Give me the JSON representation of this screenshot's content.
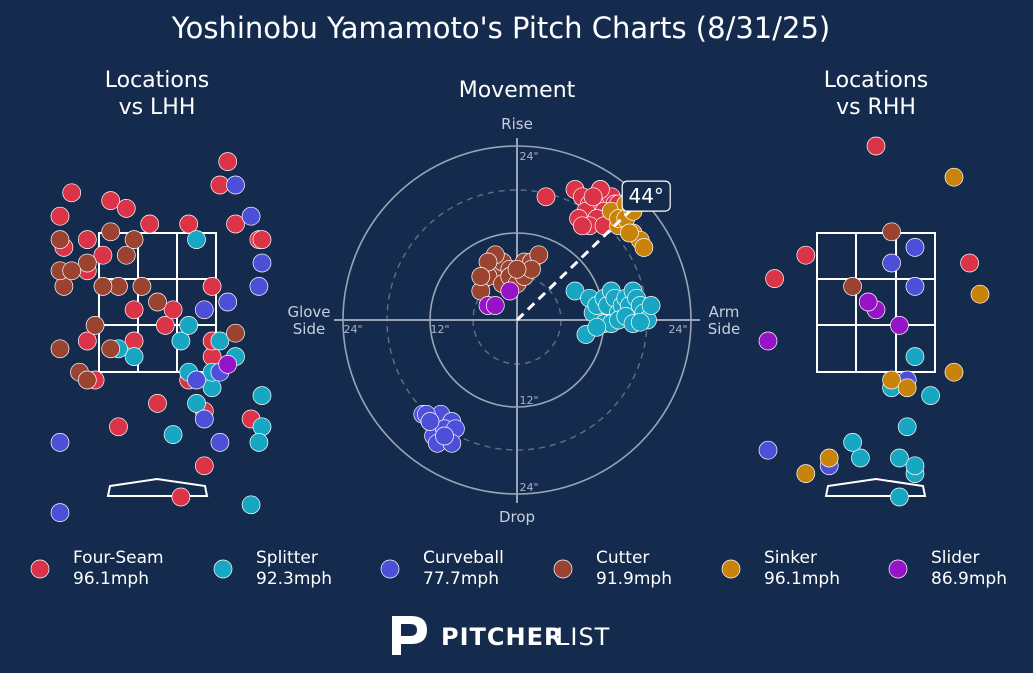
{
  "title": "Yoshinobu Yamamoto's Pitch Charts (8/31/25)",
  "panels": {
    "lhh": {
      "title_line1": "Locations",
      "title_line2": "vs LHH"
    },
    "movement": {
      "title": "Movement",
      "rise": "Rise",
      "drop": "Drop",
      "glove_line1": "Glove",
      "glove_line2": "Side",
      "arm_line1": "Arm",
      "arm_line2": "Side",
      "angle_label": "44°"
    },
    "rhh": {
      "title_line1": "Locations",
      "title_line2": "vs RHH"
    }
  },
  "ring_labels": {
    "top24": "24\"",
    "top12": "12\"",
    "bottom24": "24\"",
    "left24": "24\"",
    "left12": "12\"",
    "right24": "24\""
  },
  "brand": {
    "bold": "PITCHER",
    "light": "LIST"
  },
  "colors": {
    "background": "#152b4e",
    "Four-Seam": "#db3347",
    "Splitter": "#17a7c3",
    "Curveball": "#4d4fd9",
    "Cutter": "#9a4331",
    "Sinker": "#c98309",
    "Slider": "#9713c8"
  },
  "chart_data": [
    {
      "type": "scatter",
      "title": "Movement",
      "xlabel": "Glove Side / Arm Side",
      "ylabel": "Drop / Rise",
      "xlim": [
        -24,
        24
      ],
      "ylim": [
        -24,
        24
      ],
      "angle_deg": 44,
      "series": [
        {
          "name": "Four-Seam",
          "x": [
            4,
            8,
            9,
            10,
            11,
            11.5,
            12,
            12.5,
            13,
            13.5,
            10.5,
            9.5,
            8.5,
            12,
            11,
            10,
            13,
            11.5,
            14,
            12,
            9,
            10.5
          ],
          "y": [
            17,
            18,
            17,
            16,
            17,
            18,
            17,
            16,
            17,
            16,
            15,
            15,
            14,
            15,
            14,
            13,
            15,
            18,
            16,
            13,
            13,
            17
          ]
        },
        {
          "name": "Splitter",
          "x": [
            8,
            10,
            10.5,
            11,
            12,
            12.5,
            13,
            13.5,
            14,
            14.5,
            15,
            15.5,
            16,
            16.5,
            17,
            17.5,
            18,
            12,
            13,
            14,
            15,
            16,
            17,
            18.5,
            9.5,
            11
          ],
          "y": [
            4,
            3,
            1,
            2,
            3,
            2,
            4,
            3,
            1,
            2,
            3,
            2,
            4,
            3,
            2,
            1,
            0,
            -0.5,
            -0.5,
            0,
            0.5,
            -0.5,
            -0.3,
            2,
            -2,
            -1
          ]
        },
        {
          "name": "Curveball",
          "x": [
            -13,
            -12,
            -11,
            -10.5,
            -10,
            -9.5,
            -9,
            -11.5,
            -12.5,
            -10,
            -11,
            -8.5,
            -9,
            -12,
            -10
          ],
          "y": [
            -13,
            -14,
            -14,
            -13,
            -15,
            -16,
            -14,
            -16,
            -13,
            -15,
            -17,
            -15,
            -17,
            -14,
            -16
          ]
        },
        {
          "name": "Cutter",
          "x": [
            -3,
            -2,
            -1,
            0,
            1,
            2,
            3,
            -4,
            -2,
            -1,
            0,
            1,
            2,
            -3,
            -5,
            -4,
            -5,
            0
          ],
          "y": [
            7,
            8,
            7,
            7,
            8,
            8,
            9,
            6,
            5,
            6,
            5,
            6,
            7,
            9,
            4,
            8,
            6,
            7
          ]
        },
        {
          "name": "Sinker",
          "x": [
            13,
            14,
            15,
            16,
            17,
            14,
            15,
            16,
            15.5,
            17.5
          ],
          "y": [
            15,
            13,
            16,
            12,
            11,
            14,
            14,
            15,
            12,
            10
          ]
        },
        {
          "name": "Slider",
          "x": [
            -4,
            -3,
            -1
          ],
          "y": [
            2,
            2,
            4
          ]
        }
      ]
    },
    {
      "type": "scatter",
      "title": "Locations vs LHH",
      "xlim": [
        -2.5,
        2.5
      ],
      "ylim": [
        0,
        5
      ],
      "series": [
        {
          "name": "Four-Seam",
          "x": [
            -1.1,
            -0.6,
            0.9,
            0.4,
            -1.3,
            -0.9,
            -0.1,
            0.8,
            -0.7,
            -1.2,
            -0.9,
            -0.3,
            0.1,
            -0.3,
            0.4,
            0.7,
            -0.8,
            0.6,
            0.0,
            -0.5,
            0.2,
            1.0,
            0.6,
            -0.9,
            1.3,
            0.7,
            -0.4,
            2.1,
            0.7,
            0.3,
            1.2
          ],
          "y": [
            3.9,
            3.8,
            4.3,
            3.5,
            3.6,
            3.3,
            3.5,
            4.0,
            3.1,
            3.2,
            2.9,
            2.4,
            2.2,
            2.0,
            1.5,
            1.8,
            1.5,
            1.1,
            1.2,
            0.9,
            2.4,
            3.5,
            0.4,
            2.0,
            3.3,
            2.7,
            3.7,
            3.3,
            2.0,
            0.0,
            1.0
          ]
        },
        {
          "name": "Splitter",
          "x": [
            -0.3,
            0.3,
            0.7,
            0.5,
            1.0,
            -0.5,
            0.7,
            1.5,
            2.2,
            1.2,
            0.8,
            0.4,
            1.3,
            0.5,
            0.2,
            0.4
          ],
          "y": [
            1.8,
            2.0,
            1.4,
            1.2,
            1.8,
            1.9,
            1.6,
            0.9,
            1.3,
            -0.1,
            2.0,
            2.2,
            0.7,
            3.3,
            0.8,
            1.6
          ]
        },
        {
          "name": "Curveball",
          "x": [
            1.0,
            1.2,
            0.9,
            0.6,
            1.3,
            -1.5,
            0.6,
            0.5,
            0.8,
            -1.3,
            1.5,
            0.8
          ],
          "y": [
            4.0,
            3.6,
            2.5,
            2.4,
            2.7,
            0.7,
            1.0,
            1.5,
            0.7,
            -0.2,
            3.0,
            1.6
          ]
        },
        {
          "name": "Cutter",
          "x": [
            -0.6,
            -0.4,
            -0.2,
            -0.8,
            -0.3,
            -1.2,
            0.0,
            1.0,
            -1.0,
            -0.6,
            -1.8,
            -1.6,
            -0.9,
            -0.5,
            -0.9,
            -1.4,
            -1.1,
            -0.7
          ],
          "y": [
            3.4,
            3.1,
            2.7,
            2.2,
            3.3,
            2.7,
            2.5,
            2.1,
            1.6,
            1.9,
            2.9,
            3.3,
            3.0,
            2.7,
            1.5,
            1.9,
            2.9,
            2.7
          ]
        },
        {
          "name": "Slider",
          "x": [
            0.9
          ],
          "y": [
            1.7
          ]
        }
      ]
    },
    {
      "type": "scatter",
      "title": "Locations vs RHH",
      "xlim": [
        -2.5,
        2.5
      ],
      "ylim": [
        0,
        5
      ],
      "series": [
        {
          "name": "Four-Seam",
          "x": [
            0.0,
            -0.9,
            1.2,
            -1.3
          ],
          "y": [
            4.5,
            3.1,
            3.0,
            2.8
          ]
        },
        {
          "name": "Splitter",
          "x": [
            0.5,
            0.2,
            0.7,
            0.4,
            0.3,
            -0.2,
            0.5,
            0.3,
            -0.3,
            0.5
          ],
          "y": [
            1.8,
            1.4,
            1.3,
            0.9,
            0.5,
            0.5,
            0.3,
            0.0,
            0.7,
            0.4
          ]
        },
        {
          "name": "Curveball",
          "x": [
            0.5,
            0.2,
            0.5,
            -1.6,
            -0.6,
            0.4
          ],
          "y": [
            3.2,
            3.0,
            2.7,
            0.6,
            0.4,
            1.5
          ]
        },
        {
          "name": "Cutter",
          "x": [
            0.2,
            -0.3
          ],
          "y": [
            3.4,
            2.7
          ]
        },
        {
          "name": "Sinker",
          "x": [
            1.0,
            1.7,
            0.2,
            1.0,
            -0.9,
            -0.6,
            0.4
          ],
          "y": [
            4.1,
            2.6,
            1.5,
            1.6,
            0.3,
            0.5,
            1.4
          ]
        },
        {
          "name": "Slider",
          "x": [
            0.0,
            0.3,
            -2.4,
            -0.1
          ],
          "y": [
            2.4,
            2.2,
            2.0,
            2.5
          ]
        }
      ]
    }
  ],
  "legend": [
    {
      "name": "Four-Seam",
      "speed": "96.1mph"
    },
    {
      "name": "Splitter",
      "speed": "92.3mph"
    },
    {
      "name": "Curveball",
      "speed": "77.7mph"
    },
    {
      "name": "Cutter",
      "speed": "91.9mph"
    },
    {
      "name": "Sinker",
      "speed": "96.1mph"
    },
    {
      "name": "Slider",
      "speed": "86.9mph"
    }
  ]
}
